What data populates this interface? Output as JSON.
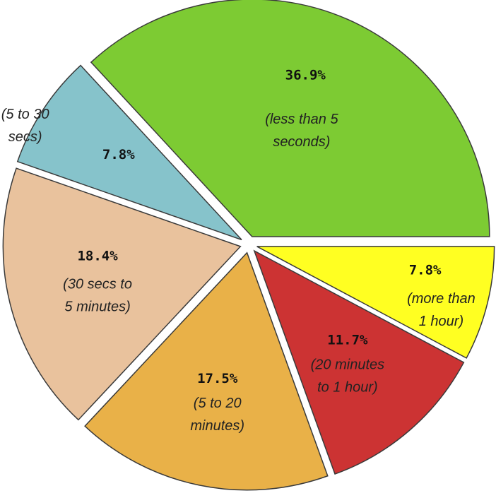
{
  "chart_data": {
    "type": "pie",
    "exploded": true,
    "start_angle_deg": 0,
    "direction": "counterclockwise",
    "slices": [
      {
        "percent_label": "36.9%",
        "value": 36.9,
        "desc_lines": [
          "(less than 5",
          "seconds)"
        ],
        "color": "#7dcb33"
      },
      {
        "percent_label": "7.8%",
        "value": 7.8,
        "desc_lines": [
          "(5 to 30",
          "secs)"
        ],
        "color": "#86c3cb"
      },
      {
        "percent_label": "18.4%",
        "value": 18.4,
        "desc_lines": [
          "(30 secs to",
          "5 minutes)"
        ],
        "color": "#e9c29d"
      },
      {
        "percent_label": "17.5%",
        "value": 17.5,
        "desc_lines": [
          "(5 to 20",
          "minutes)"
        ],
        "color": "#e9b148"
      },
      {
        "percent_label": "11.7%",
        "value": 11.7,
        "desc_lines": [
          "(20 minutes",
          "to 1 hour)"
        ],
        "color": "#cc3333"
      },
      {
        "percent_label": "7.8%",
        "value": 7.8,
        "desc_lines": [
          "(more than",
          "1 hour)"
        ],
        "color": "#ffff22"
      }
    ]
  }
}
